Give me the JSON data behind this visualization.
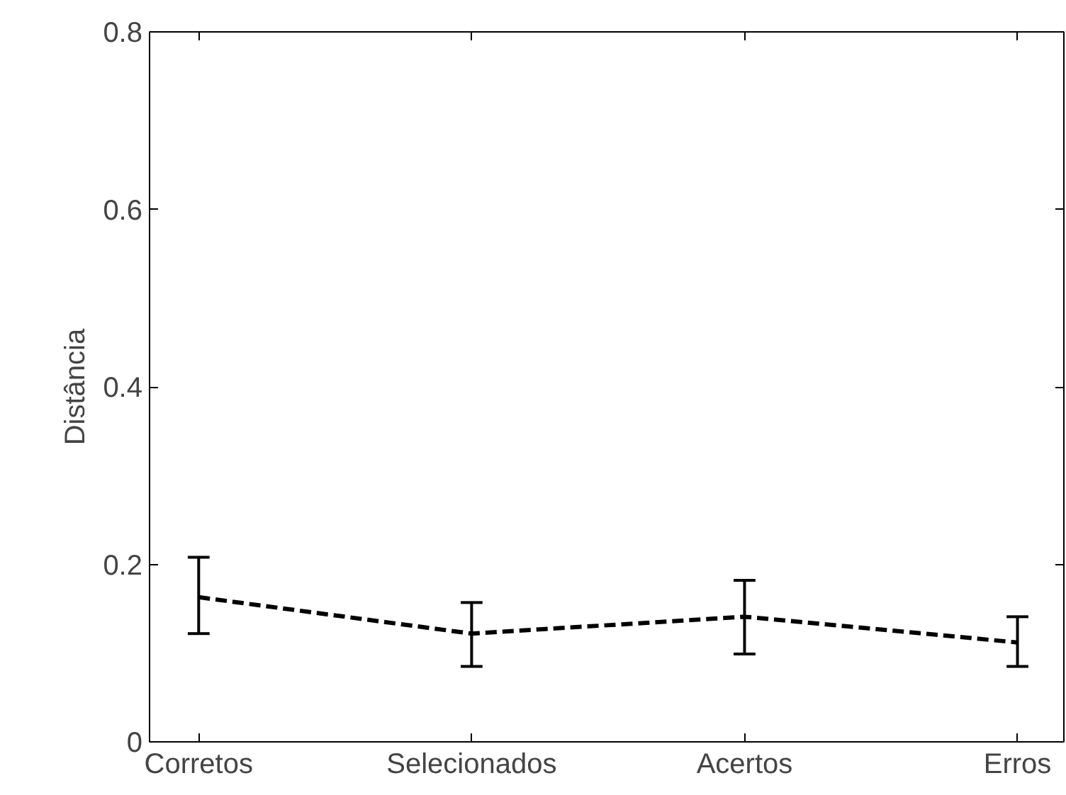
{
  "chart_data": {
    "type": "line",
    "ylabel": "Distância",
    "categories": [
      "Corretos",
      "Selecionados",
      "Acertos",
      "Erros"
    ],
    "series": [
      {
        "color": "#000000",
        "values": [
          0.163,
          0.122,
          0.141,
          0.112
        ],
        "errors": [
          [
            0.122,
            0.208
          ],
          [
            0.085,
            0.157
          ],
          [
            0.099,
            0.182
          ],
          [
            0.085,
            0.141
          ]
        ]
      }
    ],
    "ylim": [
      0,
      0.8
    ],
    "yticks": [
      0,
      0.2,
      0.4,
      0.6,
      0.8
    ],
    "line_style": "dashed",
    "marker": "none",
    "grid": false
  }
}
